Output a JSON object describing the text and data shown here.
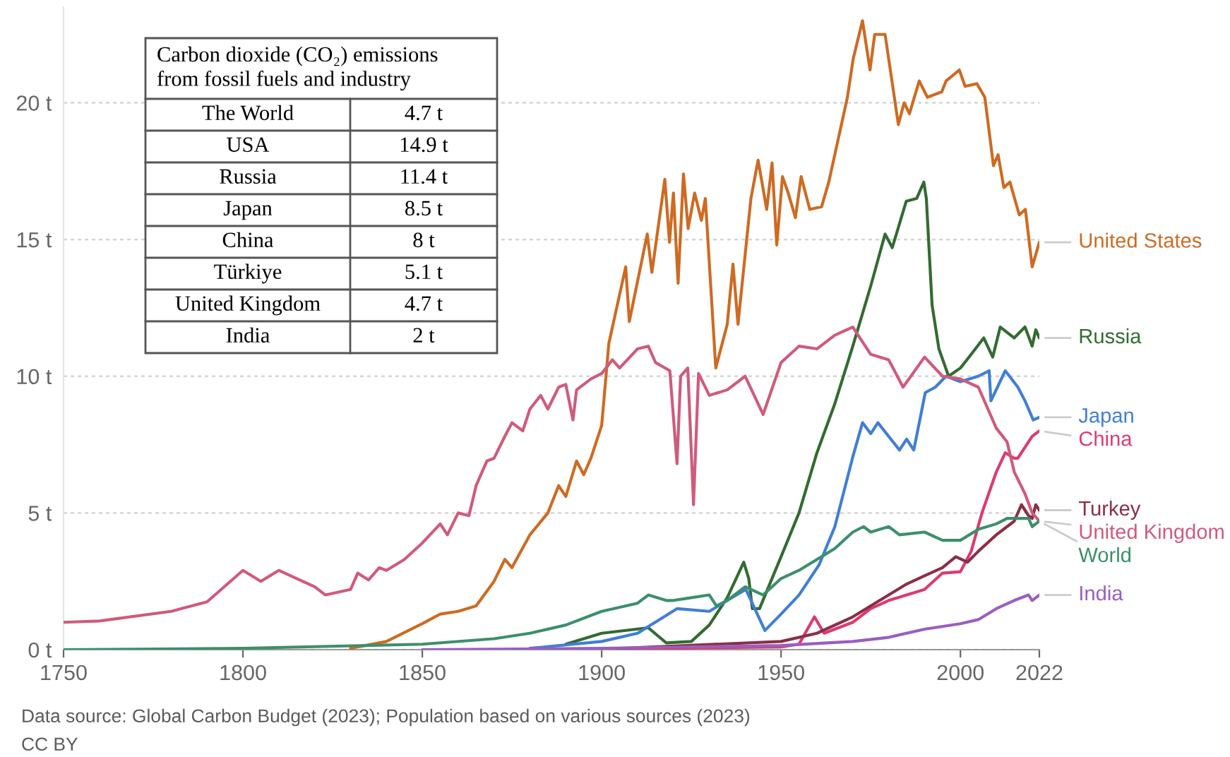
{
  "chart_data": {
    "type": "line",
    "xlim": [
      1750,
      2022
    ],
    "xticks": [
      1750,
      1800,
      1850,
      1900,
      1950,
      2000,
      2022
    ],
    "ylim": [
      0,
      23.5
    ],
    "yticks": [
      {
        "value": 0,
        "label": "0 t"
      },
      {
        "value": 5,
        "label": "5 t"
      },
      {
        "value": 10,
        "label": "10 t"
      },
      {
        "value": 15,
        "label": "15 t"
      },
      {
        "value": 20,
        "label": "20 t"
      }
    ],
    "grid": "y",
    "series": [
      {
        "name": "United States",
        "color": "#cd6b22",
        "x": [
          1830,
          1840,
          1850,
          1855,
          1860,
          1865,
          1870,
          1873,
          1875,
          1880,
          1885,
          1888,
          1890,
          1893,
          1895,
          1897,
          1900,
          1902,
          1906.7,
          1907.7,
          1912.7,
          1914,
          1917.6,
          1918.9,
          1920,
          1921.3,
          1922.8,
          1924.1,
          1925.9,
          1927.8,
          1928.9,
          1931.8,
          1935,
          1936.6,
          1938,
          1941.6,
          1943.6,
          1946,
          1947.5,
          1948.8,
          1950.4,
          1952,
          1954,
          1955.6,
          1958,
          1961.3,
          1963.3,
          1968.5,
          1970.1,
          1972.7,
          1974.8,
          1976.1,
          1979,
          1982.7,
          1984.3,
          1985.8,
          1988.5,
          1990.8,
          1994.8,
          1996,
          1999.7,
          2001.3,
          2004.6,
          2006.8,
          2009.2,
          2010.5,
          2012.1,
          2013.8,
          2016.4,
          2018.1,
          2020,
          2022
        ],
        "values": [
          0.05,
          0.3,
          0.95,
          1.3,
          1.4,
          1.6,
          2.5,
          3.3,
          3.0,
          4.2,
          5.0,
          6.0,
          5.6,
          6.9,
          6.4,
          7.0,
          8.2,
          11.2,
          14.0,
          12.0,
          15.2,
          13.8,
          17.2,
          14.9,
          16.7,
          13.4,
          17.4,
          15.4,
          16.7,
          15.7,
          16.5,
          10.3,
          11.9,
          14.1,
          11.9,
          16.5,
          17.9,
          16.1,
          17.8,
          14.8,
          17.3,
          16.7,
          15.8,
          17.3,
          16.1,
          16.2,
          17.1,
          20.2,
          21.6,
          23.0,
          21.2,
          22.5,
          22.5,
          19.2,
          20.0,
          19.6,
          20.8,
          20.2,
          20.4,
          20.8,
          21.2,
          20.6,
          20.7,
          20.2,
          17.7,
          18.1,
          16.9,
          17.1,
          15.9,
          16.1,
          14.0,
          14.9
        ]
      },
      {
        "name": "Russia",
        "color": "#336b30",
        "x": [
          1890,
          1900,
          1913,
          1918,
          1925,
          1930,
          1935,
          1939.6,
          1941,
          1942,
          1944,
          1950,
          1955,
          1960,
          1965,
          1970,
          1975,
          1979,
          1981,
          1984.9,
          1987.8,
          1989.8,
          1990.5,
          1992.1,
          1994,
          1996.7,
          2000,
          2003,
          2006.5,
          2009,
          2011.1,
          2015,
          2018,
          2020,
          2021,
          2022
        ],
        "values": [
          0.2,
          0.6,
          0.8,
          0.25,
          0.3,
          0.9,
          1.9,
          3.2,
          2.6,
          1.5,
          1.5,
          3.4,
          5.0,
          7.2,
          9.0,
          11.1,
          13.3,
          15.2,
          14.7,
          16.4,
          16.5,
          17.1,
          16.5,
          12.6,
          11.0,
          10.0,
          10.3,
          10.8,
          11.4,
          10.7,
          11.8,
          11.4,
          11.8,
          11.1,
          11.7,
          11.4
        ]
      },
      {
        "name": "Japan",
        "color": "#3f7fd4",
        "x": [
          1880,
          1900,
          1910,
          1921,
          1930,
          1935,
          1940.2,
          1945.5,
          1950,
          1955,
          1960.6,
          1965,
          1970.1,
          1972.7,
          1975,
          1977,
          1980,
          1983,
          1985,
          1987,
          1990.2,
          1993,
          1996,
          2000,
          2005,
          2008,
          2008.5,
          2012.5,
          2016,
          2018,
          2020.3,
          2022
        ],
        "values": [
          0.05,
          0.3,
          0.6,
          1.5,
          1.4,
          1.8,
          2.2,
          0.7,
          1.3,
          2.0,
          3.1,
          4.5,
          7.1,
          8.3,
          7.9,
          8.3,
          7.8,
          7.3,
          7.7,
          7.3,
          9.4,
          9.6,
          10.0,
          9.8,
          10.0,
          10.2,
          9.1,
          10.2,
          9.6,
          9.1,
          8.4,
          8.5
        ]
      },
      {
        "name": "China",
        "color": "#dc3a72",
        "x": [
          1900,
          1950,
          1955,
          1959.3,
          1962,
          1970,
          1975,
          1980,
          1985,
          1990,
          1995,
          2000,
          2003,
          2006,
          2010,
          2012.5,
          2015,
          2016,
          2020,
          2022
        ],
        "values": [
          0.02,
          0.1,
          0.2,
          1.2,
          0.6,
          1.0,
          1.5,
          1.8,
          2.0,
          2.2,
          2.8,
          2.85,
          3.6,
          5.0,
          6.5,
          7.2,
          7.0,
          7.0,
          7.8,
          8.0
        ]
      },
      {
        "name": "Turkey",
        "color": "#8a2f45",
        "x": [
          1900,
          1950,
          1960,
          1970,
          1975,
          1980,
          1985,
          1990,
          1995,
          1998.7,
          2002,
          2005,
          2010,
          2015,
          2017,
          2019,
          2020,
          2021,
          2022
        ],
        "values": [
          0.02,
          0.3,
          0.6,
          1.2,
          1.6,
          2.0,
          2.4,
          2.7,
          3.0,
          3.4,
          3.2,
          3.6,
          4.2,
          4.7,
          5.3,
          4.9,
          4.8,
          5.3,
          5.1
        ]
      },
      {
        "name": "United Kingdom",
        "color": "#cf5b7c",
        "x": [
          1750,
          1760,
          1780,
          1790,
          1800,
          1805,
          1810,
          1815,
          1820,
          1823,
          1830,
          1832,
          1835,
          1838,
          1840,
          1845,
          1850,
          1855,
          1857,
          1860,
          1863,
          1865,
          1868,
          1870,
          1873,
          1875,
          1878,
          1880,
          1883,
          1885,
          1888,
          1890,
          1892,
          1893,
          1897,
          1900,
          1903,
          1905,
          1910,
          1913,
          1915,
          1919,
          1921,
          1922,
          1924,
          1925.6,
          1927,
          1930,
          1935,
          1940,
          1945,
          1950,
          1955,
          1960,
          1965,
          1970,
          1975,
          1980,
          1984,
          1990,
          1995,
          2000,
          2005,
          2010,
          2013,
          2015,
          2018,
          2020,
          2022
        ],
        "values": [
          1.0,
          1.05,
          1.4,
          1.75,
          2.9,
          2.5,
          2.9,
          2.6,
          2.3,
          2.0,
          2.2,
          2.8,
          2.55,
          3.0,
          2.9,
          3.3,
          3.9,
          4.6,
          4.2,
          5.0,
          4.9,
          6.0,
          6.9,
          7.0,
          7.8,
          8.3,
          8.0,
          8.8,
          9.3,
          8.8,
          9.6,
          9.7,
          8.4,
          9.5,
          9.9,
          10.1,
          10.6,
          10.3,
          11.0,
          11.1,
          10.5,
          10.2,
          6.8,
          10.0,
          10.3,
          5.3,
          10.1,
          9.3,
          9.5,
          10.0,
          8.6,
          10.5,
          11.1,
          11.0,
          11.5,
          11.8,
          10.8,
          10.6,
          9.6,
          10.7,
          10.0,
          9.9,
          9.6,
          8.1,
          7.6,
          6.5,
          5.7,
          5.0,
          4.7
        ]
      },
      {
        "name": "World",
        "color": "#3c8f6c",
        "x": [
          1750,
          1800,
          1850,
          1870,
          1880,
          1890,
          1900,
          1910,
          1913,
          1918,
          1920,
          1925,
          1930,
          1932,
          1935,
          1940,
          1945,
          1950,
          1955,
          1960,
          1965,
          1970,
          1973,
          1975,
          1980,
          1983,
          1990,
          1995,
          2000,
          2005,
          2010,
          2013,
          2019,
          2020,
          2022
        ],
        "values": [
          0.0,
          0.05,
          0.2,
          0.4,
          0.6,
          0.9,
          1.4,
          1.7,
          2.0,
          1.8,
          1.8,
          1.9,
          2.0,
          1.6,
          1.8,
          2.3,
          2.0,
          2.6,
          2.9,
          3.3,
          3.7,
          4.3,
          4.5,
          4.3,
          4.5,
          4.2,
          4.3,
          4.0,
          4.0,
          4.4,
          4.6,
          4.8,
          4.8,
          4.5,
          4.7
        ]
      },
      {
        "name": "India",
        "color": "#9a5ec0",
        "x": [
          1850,
          1900,
          1950,
          1970,
          1980,
          1990,
          2000,
          2005,
          2010,
          2015,
          2019,
          2020,
          2022
        ],
        "values": [
          0.0,
          0.05,
          0.15,
          0.3,
          0.45,
          0.75,
          0.95,
          1.1,
          1.5,
          1.8,
          2.0,
          1.8,
          2.0
        ]
      }
    ],
    "annotations": [
      "Carbon dioxide (CO₂) emissions\nfrom fossil fuels and industry",
      "The World",
      "4.7 t",
      "USA",
      "14.9 t",
      "Russia",
      "11.4 t",
      "Japan",
      "8.5 t",
      "China",
      "8 t",
      "Türkiye",
      "5.1 t",
      "United Kingdom",
      "4.7 t",
      "India",
      "2 t",
      "Data source: Global Carbon Budget (2023); Population based on various sources (2023)",
      "CC BY"
    ]
  }
}
